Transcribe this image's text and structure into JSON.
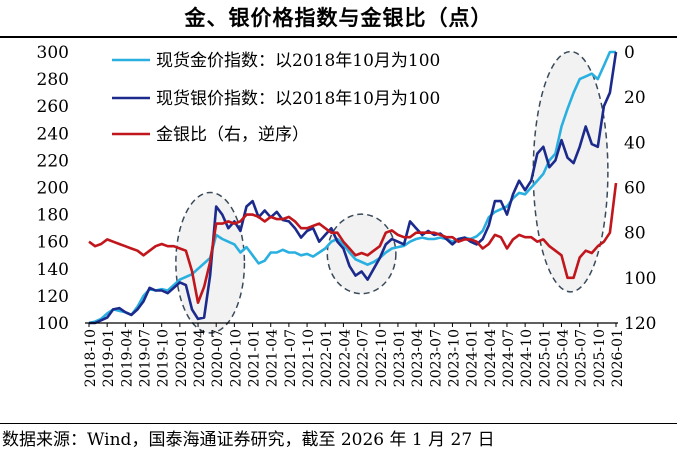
{
  "title": "金、银价格指数与金银比（点）",
  "source": "数据来源：Wind，国泰海通证券研究，截至 2026 年 1 月 27 日",
  "chart_data": {
    "type": "line",
    "title": "金、银价格指数与金银比（点）",
    "x": [
      "2018-10",
      "2018-11",
      "2018-12",
      "2019-01",
      "2019-02",
      "2019-03",
      "2019-04",
      "2019-05",
      "2019-06",
      "2019-07",
      "2019-08",
      "2019-09",
      "2019-10",
      "2019-11",
      "2019-12",
      "2020-01",
      "2020-02",
      "2020-03",
      "2020-04",
      "2020-05",
      "2020-06",
      "2020-07",
      "2020-08",
      "2020-09",
      "2020-10",
      "2020-11",
      "2020-12",
      "2021-01",
      "2021-02",
      "2021-03",
      "2021-04",
      "2021-05",
      "2021-06",
      "2021-07",
      "2021-08",
      "2021-09",
      "2021-10",
      "2021-11",
      "2021-12",
      "2022-01",
      "2022-02",
      "2022-03",
      "2022-04",
      "2022-05",
      "2022-06",
      "2022-07",
      "2022-08",
      "2022-09",
      "2022-10",
      "2022-11",
      "2022-12",
      "2023-01",
      "2023-02",
      "2023-03",
      "2023-04",
      "2023-05",
      "2023-06",
      "2023-07",
      "2023-08",
      "2023-09",
      "2023-10",
      "2023-11",
      "2023-12",
      "2024-01",
      "2024-02",
      "2024-03",
      "2024-04",
      "2024-05",
      "2024-06",
      "2024-07",
      "2024-08",
      "2024-09",
      "2024-10",
      "2024-11",
      "2024-12",
      "2025-01",
      "2025-02",
      "2025-03",
      "2025-04",
      "2025-05",
      "2025-06",
      "2025-07",
      "2025-08",
      "2025-09",
      "2025-10",
      "2025-11",
      "2025-12",
      "2026-01"
    ],
    "x_tick_labels": [
      "2018-10",
      "2019-01",
      "2019-04",
      "2019-07",
      "2019-10",
      "2020-01",
      "2020-04",
      "2020-07",
      "2020-10",
      "2021-01",
      "2021-04",
      "2021-07",
      "2021-10",
      "2022-01",
      "2022-04",
      "2022-07",
      "2022-10",
      "2023-01",
      "2023-04",
      "2023-07",
      "2023-10",
      "2024-01",
      "2024-04",
      "2024-07",
      "2024-10",
      "2025-01",
      "2025-04",
      "2025-07",
      "2025-10",
      "2026-01"
    ],
    "y_left": {
      "ylim": [
        100,
        300
      ],
      "ticks": [
        100,
        120,
        140,
        160,
        180,
        200,
        220,
        240,
        260,
        280,
        300
      ]
    },
    "y_right": {
      "ylim": [
        0,
        120
      ],
      "inverted": true,
      "ticks": [
        0,
        20,
        40,
        60,
        80,
        100,
        120
      ]
    },
    "series": [
      {
        "name": "现货金价指数：以2018年10月为100",
        "axis": "left",
        "color": "#29b0e0",
        "values": [
          100,
          101,
          103,
          107,
          110,
          109,
          108,
          106,
          112,
          120,
          125,
          124,
          125,
          124,
          128,
          132,
          134,
          136,
          140,
          144,
          148,
          165,
          162,
          160,
          158,
          152,
          156,
          150,
          144,
          146,
          152,
          152,
          154,
          152,
          152,
          150,
          151,
          149,
          152,
          155,
          160,
          162,
          158,
          152,
          147,
          145,
          143,
          145,
          148,
          152,
          155,
          156,
          157,
          160,
          162,
          163,
          162,
          162,
          163,
          162,
          160,
          162,
          163,
          162,
          164,
          168,
          178,
          182,
          184,
          186,
          192,
          196,
          195,
          200,
          205,
          210,
          220,
          225,
          245,
          258,
          270,
          280,
          282,
          284,
          280,
          290,
          300,
          318
        ]
      },
      {
        "name": "现货银价指数：以2018年10月为100",
        "axis": "left",
        "color": "#1c2a8c",
        "values": [
          100,
          99,
          102,
          104,
          110,
          111,
          108,
          106,
          110,
          116,
          126,
          124,
          124,
          122,
          126,
          130,
          128,
          110,
          103,
          104,
          135,
          186,
          180,
          170,
          175,
          168,
          186,
          190,
          178,
          183,
          178,
          182,
          176,
          175,
          170,
          163,
          168,
          170,
          160,
          165,
          170,
          160,
          155,
          142,
          135,
          138,
          132,
          140,
          148,
          158,
          162,
          160,
          158,
          175,
          170,
          165,
          168,
          165,
          166,
          162,
          158,
          162,
          163,
          160,
          158,
          162,
          172,
          190,
          190,
          180,
          195,
          205,
          198,
          205,
          225,
          230,
          215,
          220,
          235,
          222,
          218,
          230,
          245,
          232,
          230,
          260,
          270,
          300
        ]
      },
      {
        "name": "金银比（右，逆序）",
        "axis": "right",
        "color": "#c0161c",
        "values": [
          84,
          86,
          85,
          83,
          84,
          85,
          86,
          87,
          88,
          90,
          88,
          86,
          85,
          86,
          86,
          87,
          88,
          97,
          111,
          104,
          93,
          76,
          76,
          75,
          76,
          75,
          72,
          72,
          73,
          75,
          73,
          74,
          74,
          73,
          75,
          78,
          78,
          77,
          76,
          78,
          80,
          80,
          84,
          87,
          90,
          89,
          90,
          88,
          86,
          80,
          79,
          81,
          82,
          82,
          80,
          80,
          80,
          80,
          81,
          82,
          82,
          84,
          83,
          83,
          84,
          87,
          85,
          81,
          82,
          87,
          83,
          81,
          82,
          82,
          84,
          83,
          86,
          88,
          90,
          100,
          100,
          91,
          88,
          89,
          86,
          84,
          80,
          58
        ]
      }
    ],
    "annotations": [
      {
        "type": "ellipse",
        "from": "2020-01",
        "to": "2020-11"
      },
      {
        "type": "ellipse",
        "from": "2022-02",
        "to": "2022-12"
      },
      {
        "type": "ellipse",
        "from": "2024-12",
        "to": "2025-11"
      }
    ],
    "legend": "top-left",
    "grid": false
  }
}
